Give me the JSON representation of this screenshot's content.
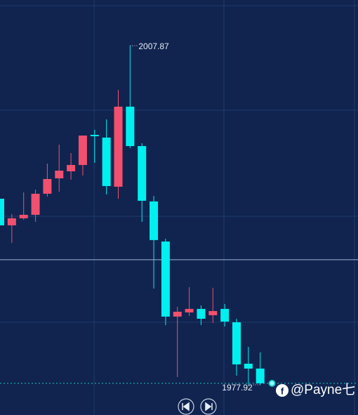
{
  "chart_data": {
    "type": "candlestick",
    "open": [
      1994.35,
      1992.0,
      1992.62,
      1992.93,
      1994.79,
      1996.15,
      1996.77,
      1997.33,
      1999.99,
      1999.75,
      1995.41,
      2002.48,
      1999.0,
      1994.11,
      1990.57,
      1983.94,
      1984.31,
      1984.62,
      1984.06,
      1984.62,
      1983.44,
      1979.78,
      1979.35
    ],
    "high": [
      1994.35,
      1992.99,
      1994.91,
      1995.16,
      1997.45,
      1999.13,
      1998.38,
      1999.93,
      2000.43,
      2001.36,
      2003.96,
      2007.87,
      1999.25,
      1994.6,
      1990.82,
      1984.81,
      1986.54,
      1984.93,
      1986.48,
      1985.05,
      1983.75,
      1981.27,
      1980.78
    ],
    "low": [
      1992.0,
      1990.45,
      1992.49,
      1992.31,
      1994.54,
      1994.97,
      1996.03,
      1996.4,
      1997.52,
      1994.73,
      1994.35,
      1998.82,
      1992.31,
      1986.42,
      1983.19,
      1978.61,
      1984.0,
      1983.19,
      1983.38,
      1983.07,
      1978.73,
      1977.92,
      1977.92
    ],
    "close": [
      1992.0,
      1992.62,
      1992.93,
      1994.79,
      1996.09,
      1996.83,
      1997.33,
      1999.93,
      1999.87,
      1995.47,
      2002.48,
      1999.0,
      1994.17,
      1990.7,
      1983.94,
      1984.37,
      1984.62,
      1983.75,
      1984.43,
      1983.5,
      1979.72,
      1979.35,
      1978.05
    ],
    "up_color": "#f2506e",
    "down_color": "#00f0f0",
    "ylim": [
      1975.25,
      2011.9
    ],
    "ygrid": [
      1983.44,
      1992.8,
      2002.17,
      2011.4
    ],
    "crosshair": 1988.96,
    "watermark": "@Payne七"
  }
}
